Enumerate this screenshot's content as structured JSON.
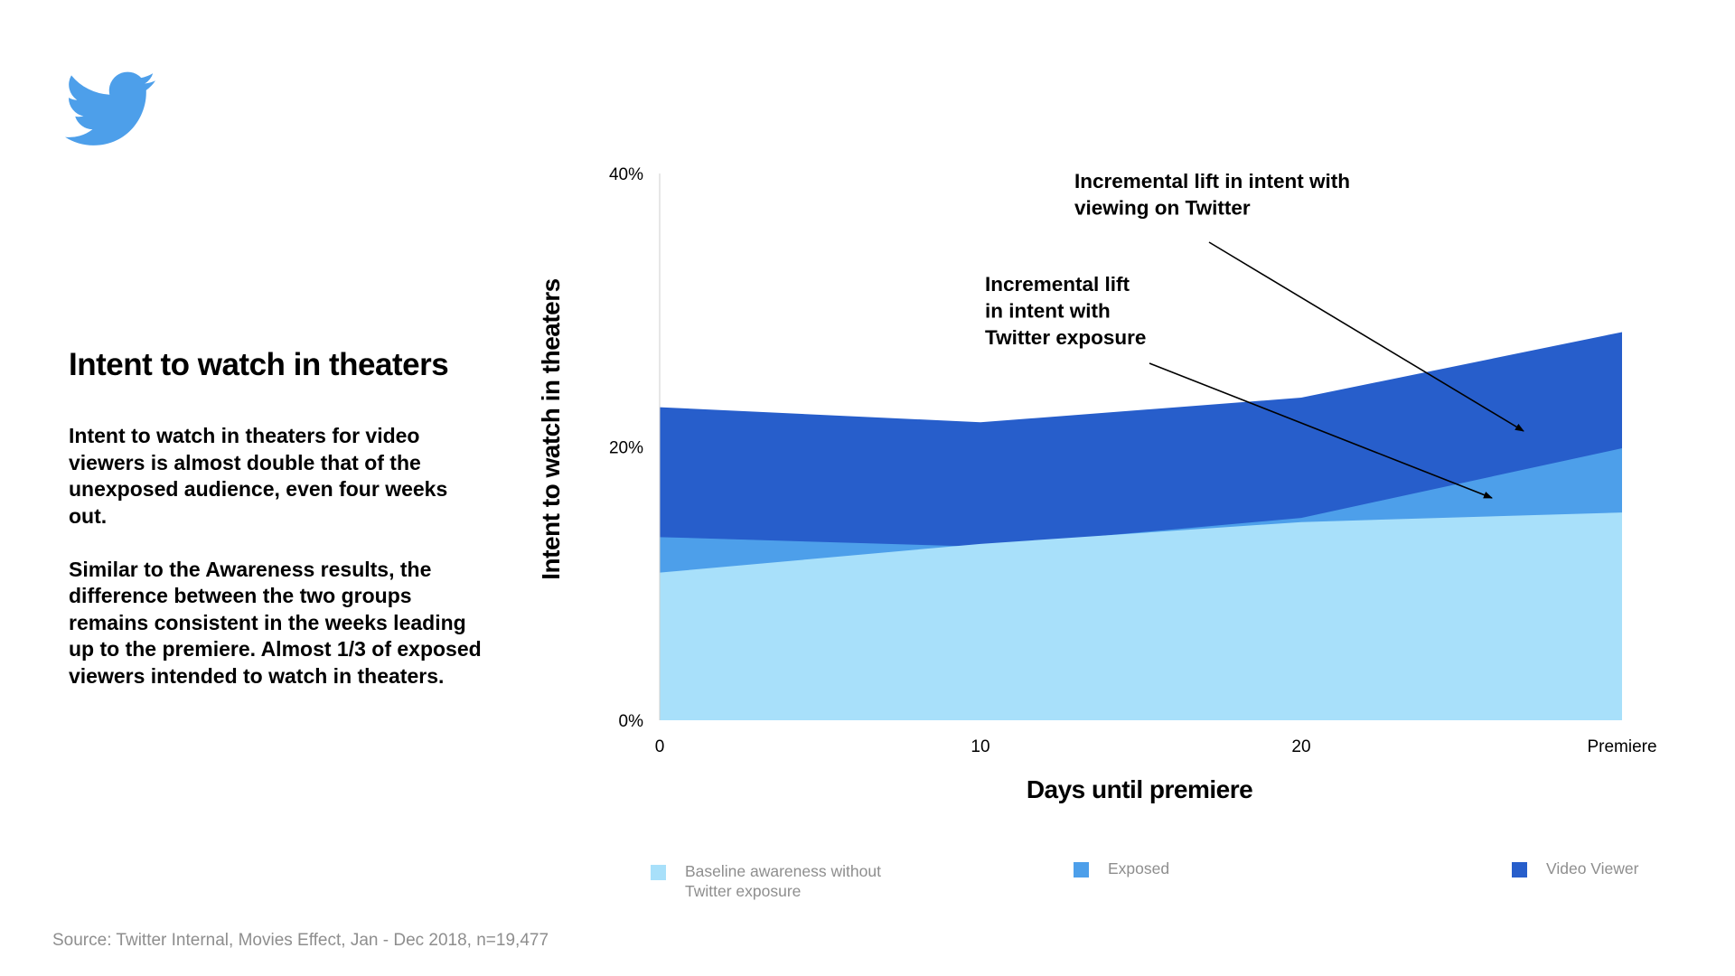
{
  "logo": {
    "icon": "twitter-bird-icon",
    "color": "#4d9fea"
  },
  "left_panel": {
    "title": "Intent to watch in theaters",
    "paragraphs": [
      "Intent to watch in theaters for video viewers is almost double that of the unexposed audience, even four weeks out.",
      "Similar to the Awareness results, the difference between the two groups remains consistent in the weeks leading up to the premiere. Almost 1/3 of exposed viewers intended to watch in theaters."
    ]
  },
  "source": "Source: Twitter Internal, Movies Effect, Jan - Dec 2018, n=19,477",
  "chart_data": {
    "type": "area",
    "title": "",
    "xlabel": "Days until premiere",
    "ylabel": "Intent to watch in theaters",
    "categories": [
      "0",
      "10",
      "20",
      "Premiere"
    ],
    "yticks": [
      "0%",
      "20%",
      "40%"
    ],
    "ylim": [
      0,
      40
    ],
    "grid": false,
    "legend_position": "bottom",
    "series": [
      {
        "name": "Baseline awareness without Twitter exposure",
        "color": "#a8e0fa",
        "values": [
          10.8,
          12.9,
          14.5,
          15.2
        ]
      },
      {
        "name": "Exposed",
        "color": "#4d9fea",
        "values": [
          13.4,
          12.7,
          14.8,
          19.9
        ]
      },
      {
        "name": "Video Viewer",
        "color": "#275ecb",
        "values": [
          22.9,
          21.8,
          23.6,
          28.4
        ]
      }
    ],
    "annotations": [
      {
        "text": "Incremental lift in intent with viewing on Twitter"
      },
      {
        "text": "Incremental lift in intent with Twitter exposure"
      }
    ]
  }
}
